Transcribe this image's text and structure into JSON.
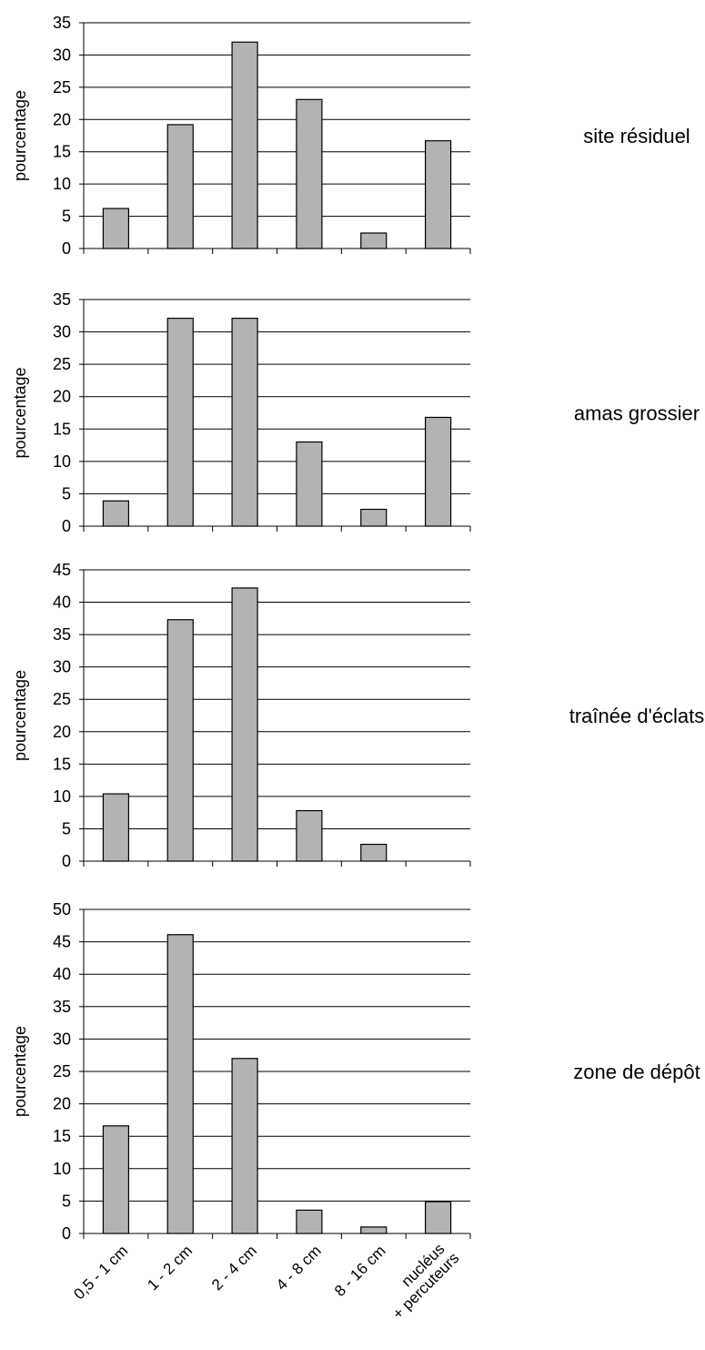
{
  "chart_data": [
    {
      "type": "bar",
      "title": "site résiduel",
      "ylabel": "pourcentage",
      "ylim": [
        0,
        35
      ],
      "yticks": [
        0,
        5,
        10,
        15,
        20,
        25,
        30,
        35
      ],
      "categories": [
        "0,5 - 1 cm",
        "1 - 2 cm",
        "2 - 4 cm",
        "4 - 8 cm",
        "8 - 16 cm",
        "nucléus + percuteurs"
      ],
      "values": [
        6.2,
        19.2,
        32.0,
        23.1,
        2.4,
        16.7
      ],
      "bar_color": "#b3b3b3",
      "grid": true
    },
    {
      "type": "bar",
      "title": "amas grossier",
      "ylabel": "pourcentage",
      "ylim": [
        0,
        35
      ],
      "yticks": [
        0,
        5,
        10,
        15,
        20,
        25,
        30,
        35
      ],
      "categories": [
        "0,5 - 1 cm",
        "1 - 2 cm",
        "2 - 4 cm",
        "4 - 8 cm",
        "8 - 16 cm",
        "nucléus + percuteurs"
      ],
      "values": [
        3.9,
        32.1,
        32.1,
        13.0,
        2.6,
        16.8
      ],
      "bar_color": "#b3b3b3",
      "grid": true
    },
    {
      "type": "bar",
      "title": "traînée d'éclats",
      "ylabel": "pourcentage",
      "ylim": [
        0,
        45
      ],
      "yticks": [
        0,
        5,
        10,
        15,
        20,
        25,
        30,
        35,
        40,
        45
      ],
      "categories": [
        "0,5 - 1 cm",
        "1 - 2 cm",
        "2 - 4 cm",
        "4 - 8 cm",
        "8 - 16 cm",
        "nucléus + percuteurs"
      ],
      "values": [
        10.4,
        37.3,
        42.2,
        7.8,
        2.6,
        0
      ],
      "bar_color": "#b3b3b3",
      "grid": true
    },
    {
      "type": "bar",
      "title": "zone de dépôt",
      "ylabel": "pourcentage",
      "ylim": [
        0,
        50
      ],
      "yticks": [
        0,
        5,
        10,
        15,
        20,
        25,
        30,
        35,
        40,
        45,
        50
      ],
      "categories": [
        "0,5 - 1 cm",
        "1 - 2 cm",
        "2 - 4 cm",
        "4 - 8 cm",
        "8 - 16 cm",
        "nucléus + percuteurs"
      ],
      "values": [
        16.6,
        46.1,
        27.0,
        3.6,
        1.0,
        4.9
      ],
      "bar_color": "#b3b3b3",
      "grid": true
    }
  ],
  "x_axis_labels": [
    "0,5 - 1 cm",
    "1 - 2 cm",
    "2 - 4 cm",
    "4 - 8 cm",
    "8 - 16 cm",
    "nucléus",
    "+ percuteurs"
  ]
}
